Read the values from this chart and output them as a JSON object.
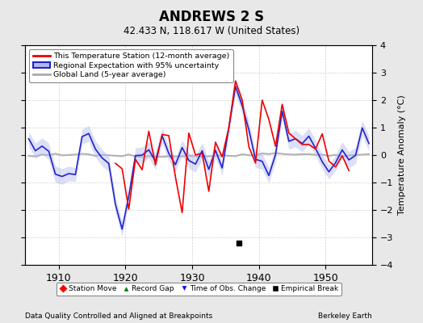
{
  "title": "ANDREWS 2 S",
  "subtitle": "42.433 N, 118.617 W (United States)",
  "ylabel": "Temperature Anomaly (°C)",
  "xlabel_note": "Data Quality Controlled and Aligned at Breakpoints",
  "source_note": "Berkeley Earth",
  "xlim": [
    1905,
    1957
  ],
  "ylim": [
    -4,
    4
  ],
  "yticks": [
    -4,
    -3,
    -2,
    -1,
    0,
    1,
    2,
    3,
    4
  ],
  "xticks": [
    1910,
    1920,
    1930,
    1940,
    1950
  ],
  "figure_bg_color": "#e8e8e8",
  "plot_bg_color": "#ffffff",
  "red_color": "#ee0000",
  "blue_color": "#2222cc",
  "blue_fill_color": "#b0b8ee",
  "gray_color": "#aaaaaa",
  "legend_labels": [
    "This Temperature Station (12-month average)",
    "Regional Expectation with 95% uncertainty",
    "Global Land (5-year average)"
  ],
  "empirical_break_year": 1937.0,
  "empirical_break_y": -3.2,
  "seed": 7
}
